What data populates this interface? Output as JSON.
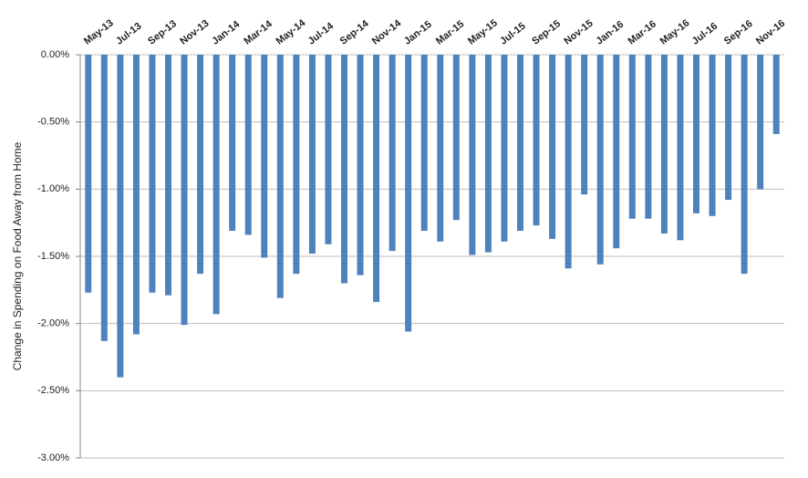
{
  "chart_data": {
    "type": "bar",
    "y_label": "Change in Spending on Food Away from Home",
    "categories": [
      "May-13",
      null,
      "Jul-13",
      null,
      "Sep-13",
      null,
      "Nov-13",
      null,
      "Jan-14",
      null,
      "Mar-14",
      null,
      "May-14",
      null,
      "Jul-14",
      null,
      "Sep-14",
      null,
      "Nov-14",
      null,
      "Jan-15",
      null,
      "Mar-15",
      null,
      "May-15",
      null,
      "Jul-15",
      null,
      "Sep-15",
      null,
      "Nov-15",
      null,
      "Jan-16",
      null,
      "Mar-16",
      null,
      "May-16",
      null,
      "Jul-16",
      null,
      "Sep-16",
      null,
      "Nov-16",
      null
    ],
    "values": [
      -1.77,
      -2.13,
      -2.4,
      -2.08,
      -1.77,
      -1.79,
      -2.01,
      -1.63,
      -1.93,
      -1.31,
      -1.34,
      -1.51,
      -1.81,
      -1.63,
      -1.48,
      -1.41,
      -1.7,
      -1.64,
      -1.84,
      -1.46,
      -2.06,
      -1.31,
      -1.39,
      -1.23,
      -1.49,
      -1.47,
      -1.39,
      -1.31,
      -1.27,
      -1.37,
      -1.59,
      -1.04,
      -1.56,
      -1.44,
      -1.22,
      -1.22,
      -1.33,
      -1.38,
      -1.18,
      -1.2,
      -1.08,
      -1.63,
      -1.0,
      -0.59
    ],
    "color": "#4f81bd",
    "ylim": [
      -3,
      0
    ],
    "yticks": [
      {
        "value": 0,
        "label": "0.00%"
      },
      {
        "value": -0.5,
        "label": "-0.50%"
      },
      {
        "value": -1,
        "label": "-1.00%"
      },
      {
        "value": -1.5,
        "label": "-1.50%"
      },
      {
        "value": -2,
        "label": "-2.00%"
      },
      {
        "value": -2.5,
        "label": "-2.50%"
      },
      {
        "value": -3,
        "label": "-3.00%"
      }
    ],
    "grid": true
  }
}
